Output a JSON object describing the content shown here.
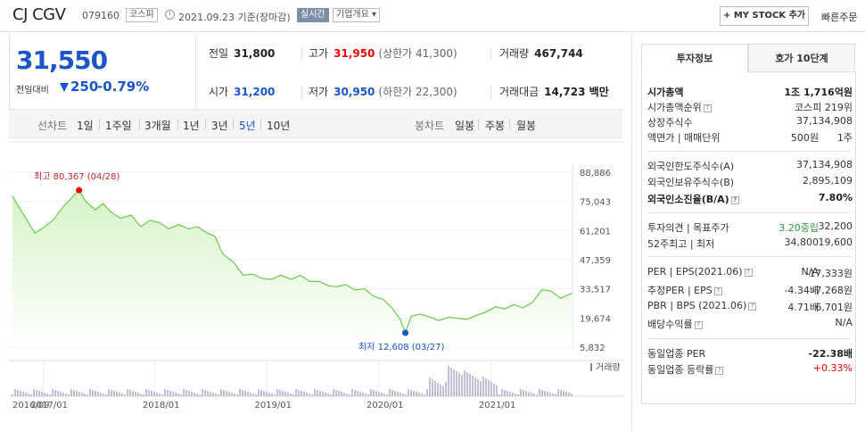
{
  "header": {
    "name": "CJ CGV",
    "code": "079160",
    "market_tag": "코스피",
    "date": "2021.09.23 기준(장마감)",
    "realtime_tag": "실시간",
    "info_tag": "기업개요 ▾",
    "mystock_button": "+ MY STOCK 추가",
    "quick_order": "빠른주문"
  },
  "price": {
    "current": "31,550",
    "change_label": "전일대비",
    "change": "250",
    "change_pct": "-0.79%",
    "colors": {
      "down": "#1a55c9",
      "up": "#e00000"
    }
  },
  "stats": {
    "prev_label": "전일",
    "prev": "31,800",
    "high_label": "고가",
    "high": "31,950",
    "upper_limit": "(상한가 41,300)",
    "volume_label": "거래량",
    "volume": "467,744",
    "open_label": "시가",
    "open": "31,200",
    "low_label": "저가",
    "low": "30,950",
    "lower_limit": "(하한가 22,300)",
    "amount_label": "거래대금",
    "amount": "14,723 백만"
  },
  "periods": {
    "line_label": "선차트",
    "line_items": [
      "1일",
      "1주일",
      "3개월",
      "1년",
      "3년",
      "5년",
      "10년"
    ],
    "active": "5년",
    "candle_label": "봉차트",
    "candle_items": [
      "일봉",
      "주봉",
      "월봉"
    ]
  },
  "right_panel": {
    "tab_active": "투자정보",
    "tab_other": "호가 10단계",
    "market_cap_label": "시가총액",
    "market_cap": "1조 1,716억원",
    "rank_label": "시가총액순위",
    "rank": "코스피 219위",
    "shares_label": "상장주식수",
    "shares": "37,134,908",
    "face_label": "액면가 | 매매단위",
    "face": "500원",
    "unit": "1주",
    "foreign_limit_label": "외국인한도주식수(A)",
    "foreign_limit": "37,134,908",
    "foreign_hold_label": "외국인보유주식수(B)",
    "foreign_hold": "2,895,109",
    "foreign_ratio_label": "외국인소진율(B/A)",
    "foreign_ratio": "7.80%",
    "opinion_label": "투자의견 | 목표주가",
    "opinion": "3.20중립",
    "target": "32,200",
    "w52_label": "52주최고 | 최저",
    "w52_high": "34,800",
    "w52_low": "19,600",
    "per_label": "PER | EPS(2021.06)",
    "per": "N/A",
    "eps": "-17,333원",
    "est_label": "추정PER | EPS",
    "est_per": "-4.34배",
    "est_eps": "-7,268원",
    "pbr_label": "PBR | BPS (2021.06)",
    "pbr": "4.71배",
    "bps": "6,701원",
    "div_label": "배당수익률",
    "div": "N/A",
    "ind_per_label": "동일업종 PER",
    "ind_per": "-22.38배",
    "ind_rate_label": "동일업종 등락률",
    "ind_rate": "+0.33%"
  },
  "chart_data": {
    "type": "area",
    "y_ticks": [
      "88,886",
      "75,043",
      "61,201",
      "47,359",
      "33,517",
      "19,674",
      "5,832"
    ],
    "y_tick_values": [
      88886,
      75043,
      61201,
      47359,
      33517,
      19674,
      5832
    ],
    "ylim": [
      5832,
      88886
    ],
    "x_ticks": [
      "2016/09",
      "2017/01",
      "2018/01",
      "2019/01",
      "2020/01",
      "2021/01"
    ],
    "x_tick_dates": [
      "2016-09-23",
      "2017-01-01",
      "2018-01-01",
      "2019-01-01",
      "2020-01-01",
      "2021-01-01"
    ],
    "xlim": [
      "2016-09-23",
      "2021-09-23"
    ],
    "high_label": "최고 80,367 (04/28)",
    "high_point": [
      "2017-04-28",
      80367
    ],
    "low_label": "최저 12,608 (03/27)",
    "low_point": [
      "2020-03-27",
      12608
    ],
    "volume_legend": "거래량",
    "line_color": "#6cc94a",
    "fill_top": "#d6f3c8",
    "series": [
      {
        "values": [
          [
            "2016-09-23",
            77500
          ],
          [
            "2016-10-15",
            72000
          ],
          [
            "2016-11-10",
            66000
          ],
          [
            "2016-12-05",
            60000
          ],
          [
            "2017-01-01",
            62500
          ],
          [
            "2017-02-01",
            66000
          ],
          [
            "2017-03-10",
            73000
          ],
          [
            "2017-04-28",
            80367
          ],
          [
            "2017-05-20",
            75000
          ],
          [
            "2017-06-20",
            71000
          ],
          [
            "2017-07-15",
            74000
          ],
          [
            "2017-08-10",
            70000
          ],
          [
            "2017-09-10",
            67000
          ],
          [
            "2017-10-15",
            68500
          ],
          [
            "2017-11-15",
            63000
          ],
          [
            "2017-12-15",
            66000
          ],
          [
            "2018-01-15",
            65000
          ],
          [
            "2018-02-15",
            62000
          ],
          [
            "2018-03-20",
            64000
          ],
          [
            "2018-04-20",
            62000
          ],
          [
            "2018-05-20",
            63000
          ],
          [
            "2018-06-20",
            60000
          ],
          [
            "2018-07-15",
            58500
          ],
          [
            "2018-08-10",
            50000
          ],
          [
            "2018-09-15",
            46000
          ],
          [
            "2018-10-15",
            40000
          ],
          [
            "2018-11-15",
            40500
          ],
          [
            "2018-12-15",
            38500
          ],
          [
            "2019-01-15",
            38000
          ],
          [
            "2019-02-15",
            40000
          ],
          [
            "2019-03-20",
            38000
          ],
          [
            "2019-04-20",
            40000
          ],
          [
            "2019-05-20",
            37000
          ],
          [
            "2019-06-20",
            37000
          ],
          [
            "2019-07-20",
            35000
          ],
          [
            "2019-08-15",
            34500
          ],
          [
            "2019-09-15",
            35500
          ],
          [
            "2019-10-15",
            33000
          ],
          [
            "2019-11-15",
            33500
          ],
          [
            "2019-12-15",
            30000
          ],
          [
            "2020-01-15",
            28500
          ],
          [
            "2020-02-15",
            24000
          ],
          [
            "2020-03-10",
            19000
          ],
          [
            "2020-03-27",
            12608
          ],
          [
            "2020-04-15",
            20500
          ],
          [
            "2020-05-15",
            21500
          ],
          [
            "2020-06-15",
            20000
          ],
          [
            "2020-07-15",
            18500
          ],
          [
            "2020-08-15",
            20000
          ],
          [
            "2020-09-15",
            19500
          ],
          [
            "2020-10-15",
            19000
          ],
          [
            "2020-11-15",
            21000
          ],
          [
            "2020-12-15",
            22500
          ],
          [
            "2021-01-15",
            25000
          ],
          [
            "2021-02-15",
            24000
          ],
          [
            "2021-03-15",
            26000
          ],
          [
            "2021-04-15",
            24500
          ],
          [
            "2021-05-15",
            27000
          ],
          [
            "2021-06-15",
            33000
          ],
          [
            "2021-07-15",
            32500
          ],
          [
            "2021-08-15",
            29000
          ],
          [
            "2021-09-23",
            31550
          ]
        ]
      }
    ]
  }
}
